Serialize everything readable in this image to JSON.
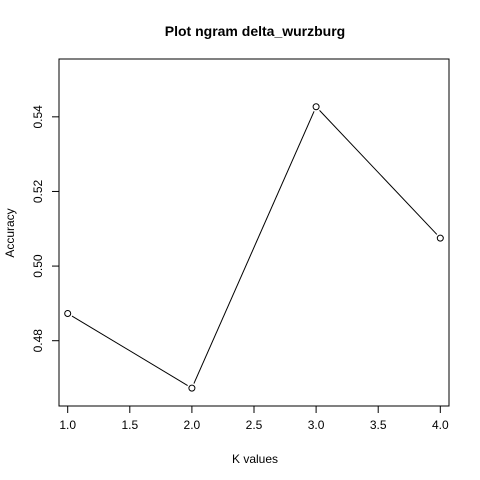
{
  "chart_data": {
    "type": "line",
    "title": "Plot ngram delta_wurzburg",
    "xlabel": "K values",
    "ylabel": "Accuracy",
    "x": [
      1,
      2,
      3,
      4
    ],
    "y": [
      0.4873,
      0.4673,
      0.5427,
      0.5075
    ],
    "xlim": [
      0.93,
      4.07
    ],
    "ylim": [
      0.4625,
      0.5555
    ],
    "xticks": [
      1.0,
      1.5,
      2.0,
      2.5,
      3.0,
      3.5,
      4.0
    ],
    "xtick_labels": [
      "1.0",
      "1.5",
      "2.0",
      "2.5",
      "3.0",
      "3.5",
      "4.0"
    ],
    "yticks": [
      0.48,
      0.5,
      0.52,
      0.54
    ],
    "ytick_labels": [
      "0.48",
      "0.50",
      "0.52",
      "0.54"
    ],
    "grid": false,
    "legend": "none",
    "line_color": "#000000",
    "marker": "open-circle"
  }
}
